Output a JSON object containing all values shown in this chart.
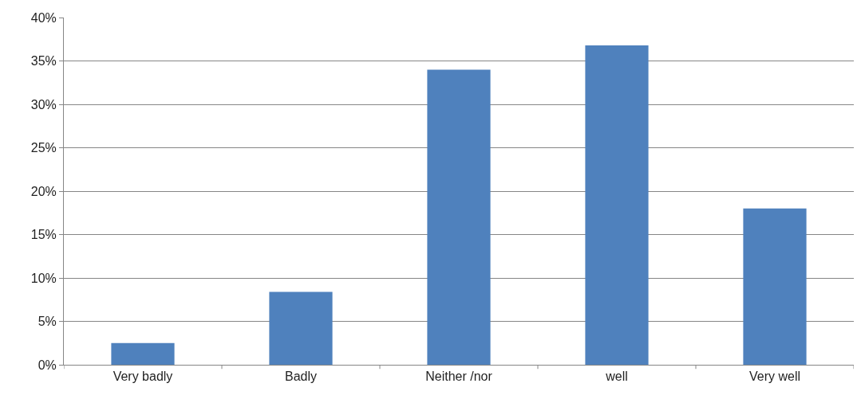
{
  "chart_data": {
    "type": "bar",
    "categories": [
      "Very badly",
      "Badly",
      "Neither /nor",
      "well",
      "Very well"
    ],
    "values": [
      2.5,
      8.4,
      34.0,
      36.8,
      18.0
    ],
    "color": "#4f81bd",
    "ylim": [
      0,
      40
    ],
    "yticks": [
      {
        "value": 0,
        "label": "0%"
      },
      {
        "value": 5,
        "label": "5%"
      },
      {
        "value": 10,
        "label": "10%"
      },
      {
        "value": 15,
        "label": "15%"
      },
      {
        "value": 20,
        "label": "20%"
      },
      {
        "value": 25,
        "label": "25%"
      },
      {
        "value": 30,
        "label": "30%"
      },
      {
        "value": 35,
        "label": "35%"
      },
      {
        "value": 40,
        "label": "40%"
      }
    ],
    "grid": "y"
  }
}
